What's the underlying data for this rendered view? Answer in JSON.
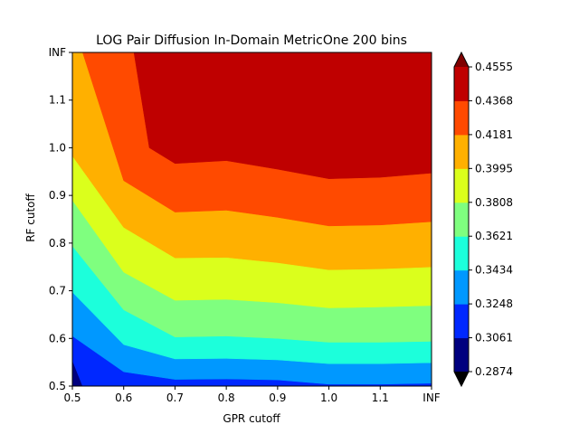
{
  "chart_data": {
    "type": "filled-contour",
    "title": "LOG Pair Diffusion In-Domain MetricOne 200 bins",
    "xlabel": "GPR cutoff",
    "ylabel": "RF cutoff",
    "x_ticks": [
      "0.5",
      "0.6",
      "0.7",
      "0.8",
      "0.9",
      "1.0",
      "1.1",
      "INF"
    ],
    "y_ticks": [
      "0.5",
      "0.6",
      "0.7",
      "0.8",
      "0.9",
      "1.0",
      "1.1",
      "INF"
    ],
    "xlim": [
      "0.5",
      "INF"
    ],
    "ylim": [
      "0.5",
      "INF"
    ],
    "colorbar": {
      "levels": [
        "0.2874",
        "0.3061",
        "0.3248",
        "0.3434",
        "0.3621",
        "0.3808",
        "0.3995",
        "0.4181",
        "0.4368",
        "0.4555"
      ],
      "colors": [
        "#00007f",
        "#0028ff",
        "#0098ff",
        "#1cffdb",
        "#7fff7f",
        "#dbff1c",
        "#ffb000",
        "#ff4a00",
        "#bf0000"
      ],
      "extend_low_color": "#000000",
      "extend_high_color": "#7f0000",
      "colormap": "jet"
    },
    "x": [
      0.5,
      0.6,
      0.7,
      0.8,
      0.9,
      1.0,
      1.1,
      1.2
    ],
    "contour_boundaries": [
      {
        "lower_level": "0.3061",
        "points": [
          [
            0.5,
            0.554
          ],
          [
            0.52,
            0.5
          ],
          [
            0.6,
            0.5
          ],
          [
            0.7,
            0.5
          ],
          [
            0.8,
            0.5
          ],
          [
            0.9,
            0.5
          ],
          [
            1.0,
            0.5
          ],
          [
            1.1,
            0.5
          ],
          [
            1.2,
            0.5
          ]
        ]
      },
      {
        "lower_level": "0.3248",
        "points": [
          [
            0.5,
            0.605
          ],
          [
            0.6,
            0.53
          ],
          [
            0.7,
            0.514
          ],
          [
            0.8,
            0.515
          ],
          [
            0.9,
            0.513
          ],
          [
            1.0,
            0.504
          ],
          [
            1.1,
            0.504
          ],
          [
            1.2,
            0.506
          ]
        ]
      },
      {
        "lower_level": "0.3434",
        "points": [
          [
            0.5,
            0.697
          ],
          [
            0.6,
            0.587
          ],
          [
            0.7,
            0.557
          ],
          [
            0.8,
            0.558
          ],
          [
            0.9,
            0.555
          ],
          [
            1.0,
            0.547
          ],
          [
            1.1,
            0.547
          ],
          [
            1.2,
            0.549
          ]
        ]
      },
      {
        "lower_level": "0.3621",
        "points": [
          [
            0.5,
            0.794
          ],
          [
            0.6,
            0.66
          ],
          [
            0.7,
            0.603
          ],
          [
            0.8,
            0.605
          ],
          [
            0.9,
            0.6
          ],
          [
            1.0,
            0.592
          ],
          [
            1.1,
            0.592
          ],
          [
            1.2,
            0.594
          ]
        ]
      },
      {
        "lower_level": "0.3808",
        "points": [
          [
            0.5,
            0.89
          ],
          [
            0.6,
            0.739
          ],
          [
            0.7,
            0.68
          ],
          [
            0.8,
            0.682
          ],
          [
            0.9,
            0.675
          ],
          [
            1.0,
            0.664
          ],
          [
            1.1,
            0.666
          ],
          [
            1.2,
            0.669
          ]
        ]
      },
      {
        "lower_level": "0.3995",
        "points": [
          [
            0.5,
            0.983
          ],
          [
            0.6,
            0.833
          ],
          [
            0.7,
            0.769
          ],
          [
            0.8,
            0.77
          ],
          [
            0.9,
            0.759
          ],
          [
            1.0,
            0.744
          ],
          [
            1.1,
            0.746
          ],
          [
            1.2,
            0.75
          ]
        ]
      },
      {
        "lower_level": "0.4181",
        "points": [
          [
            0.5,
            1.2
          ],
          [
            0.52,
            1.2
          ],
          [
            0.6,
            0.931
          ],
          [
            0.7,
            0.865
          ],
          [
            0.8,
            0.869
          ],
          [
            0.9,
            0.854
          ],
          [
            1.0,
            0.836
          ],
          [
            1.1,
            0.838
          ],
          [
            1.2,
            0.845
          ]
        ]
      },
      {
        "lower_level": "0.4368",
        "points": [
          [
            0.5,
            1.2
          ],
          [
            0.6,
            1.2
          ],
          [
            0.62,
            1.2
          ],
          [
            0.65,
            1.0
          ],
          [
            0.7,
            0.967
          ],
          [
            0.8,
            0.973
          ],
          [
            0.9,
            0.955
          ],
          [
            1.0,
            0.935
          ],
          [
            1.1,
            0.938
          ],
          [
            1.2,
            0.947
          ]
        ]
      }
    ],
    "x_axis_max_label": "INF",
    "y_axis_max_label": "INF",
    "grid": false
  }
}
